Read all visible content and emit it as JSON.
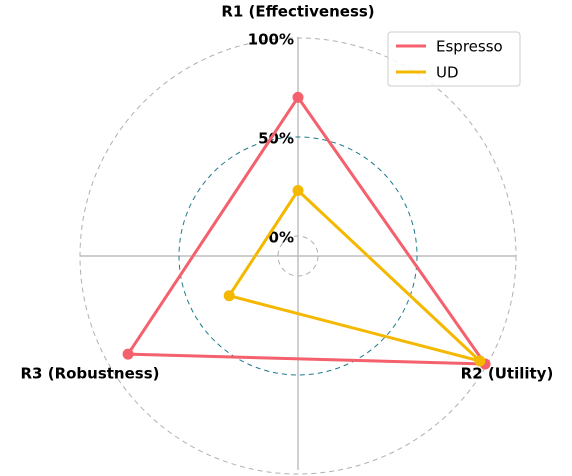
{
  "chart_data": {
    "type": "radar",
    "categories": [
      "R1 (Effectiveness)",
      "R2 (Utility)",
      "R3 (Robustness)"
    ],
    "series": [
      {
        "name": "Espresso",
        "color": "#f4606c",
        "values": [
          70,
          99,
          89
        ]
      },
      {
        "name": "UD",
        "color": "#f5b800",
        "values": [
          23,
          96,
          30
        ]
      }
    ],
    "rlim": [
      0,
      100
    ],
    "rticks": [
      {
        "value": 0,
        "label": "0%"
      },
      {
        "value": 50,
        "label": "50%"
      },
      {
        "value": 100,
        "label": "100%"
      }
    ],
    "legend": "upper right"
  }
}
